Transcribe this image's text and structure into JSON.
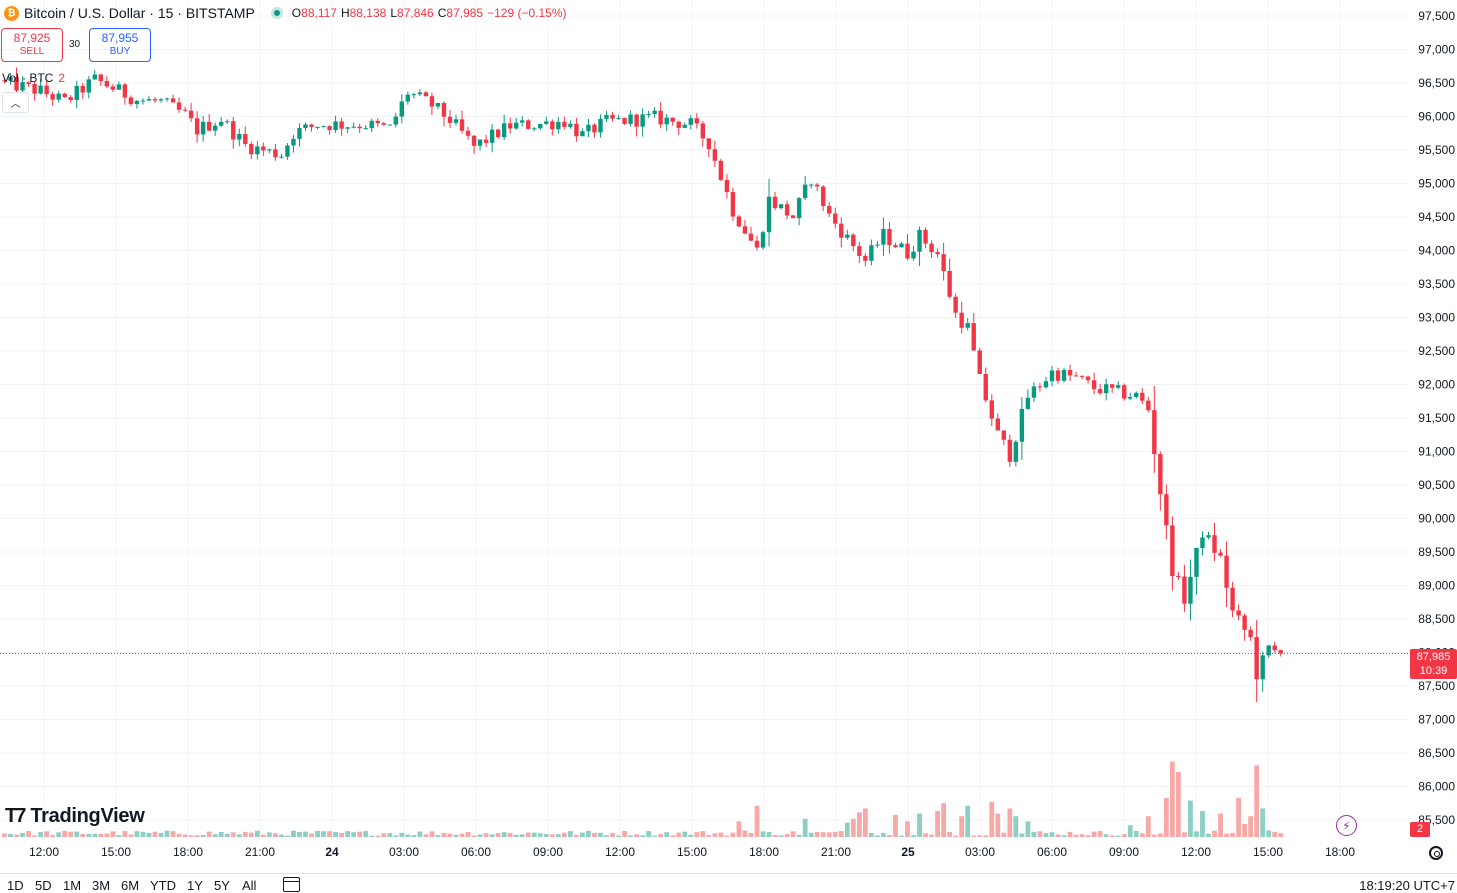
{
  "header": {
    "symbol_title": "Bitcoin / U.S. Dollar · 15 · BITSTAMP",
    "ohlc": [
      {
        "key": "O",
        "value": "88,117"
      },
      {
        "key": "H",
        "value": "88,138"
      },
      {
        "key": "L",
        "value": "87,846"
      },
      {
        "key": "C",
        "value": "87,985"
      }
    ],
    "change": "−129 (−0.15%)"
  },
  "trade": {
    "sell_price": "87,925",
    "sell_label": "SELL",
    "spread": "30",
    "buy_price": "87,955",
    "buy_label": "BUY"
  },
  "volume_legend": {
    "label": "Vol · BTC",
    "value": "2"
  },
  "logo_text": "TradingView",
  "last_price": {
    "price": "87,985",
    "countdown": "10:39"
  },
  "volume_badge": "2",
  "ranges": [
    "1D",
    "5D",
    "1M",
    "3M",
    "6M",
    "YTD",
    "1Y",
    "5Y",
    "All"
  ],
  "clock": "18:19:20 UTC+7",
  "colors": {
    "up": "#089981",
    "down": "#f23645",
    "up_volume": "#8dcfc2",
    "down_volume": "#f7a9a8"
  },
  "chart_data": {
    "type": "candlestick",
    "title": "Bitcoin / U.S. Dollar · 15 · BITSTAMP",
    "interval": "15",
    "y_axis": {
      "side": "right",
      "ylim": [
        85300,
        97600
      ],
      "ticks": [
        97500,
        97000,
        96500,
        96000,
        95500,
        95000,
        94500,
        94000,
        93500,
        93000,
        92500,
        92000,
        91500,
        91000,
        90500,
        90000,
        89500,
        89000,
        88500,
        88000,
        87500,
        87000,
        86500,
        86000,
        85500
      ],
      "tick_labels": [
        "97,500",
        "97,000",
        "96,500",
        "96,000",
        "95,500",
        "95,000",
        "94,500",
        "94,000",
        "93,500",
        "93,000",
        "92,500",
        "92,000",
        "91,500",
        "91,000",
        "90,500",
        "90,000",
        "89,500",
        "89,000",
        "88,500",
        "88,000",
        "87,500",
        "87,000",
        "86,500",
        "86,000",
        "85,500"
      ]
    },
    "x_axis": {
      "tick_labels": [
        "12:00",
        "15:00",
        "18:00",
        "21:00",
        "24",
        "03:00",
        "06:00",
        "09:00",
        "12:00",
        "15:00",
        "18:00",
        "21:00",
        "25",
        "03:00",
        "06:00",
        "09:00",
        "12:00",
        "15:00",
        "18:00"
      ],
      "first_bar_time": "10:30",
      "bar_minutes": 15
    },
    "grid": true,
    "last_price": 87985,
    "path": [
      [
        0,
        96500
      ],
      [
        6,
        96380
      ],
      [
        10,
        96220
      ],
      [
        15,
        96550
      ],
      [
        17,
        96470
      ],
      [
        22,
        96250
      ],
      [
        26,
        96220
      ],
      [
        30,
        96020
      ],
      [
        32,
        95800
      ],
      [
        36,
        95960
      ],
      [
        40,
        95570
      ],
      [
        44,
        95470
      ],
      [
        46,
        95440
      ],
      [
        48,
        95750
      ],
      [
        52,
        95880
      ],
      [
        60,
        95880
      ],
      [
        64,
        95820
      ],
      [
        67,
        96360
      ],
      [
        71,
        96170
      ],
      [
        74,
        95950
      ],
      [
        78,
        95550
      ],
      [
        84,
        95860
      ],
      [
        88,
        95880
      ],
      [
        93,
        95930
      ],
      [
        96,
        95720
      ],
      [
        100,
        95920
      ],
      [
        104,
        95950
      ],
      [
        108,
        95980
      ],
      [
        114,
        95880
      ],
      [
        117,
        95610
      ],
      [
        121,
        94600
      ],
      [
        125,
        94000
      ],
      [
        127,
        94760
      ],
      [
        131,
        94500
      ],
      [
        134,
        95080
      ],
      [
        137,
        94520
      ],
      [
        140,
        94180
      ],
      [
        143,
        93850
      ],
      [
        146,
        94230
      ],
      [
        150,
        93960
      ],
      [
        152,
        94220
      ],
      [
        155,
        93950
      ],
      [
        158,
        93050
      ],
      [
        160,
        92850
      ],
      [
        162,
        92060
      ],
      [
        165,
        91250
      ],
      [
        167,
        90950
      ],
      [
        170,
        91820
      ],
      [
        174,
        92180
      ],
      [
        178,
        92100
      ],
      [
        181,
        91950
      ],
      [
        185,
        91880
      ],
      [
        188,
        91830
      ],
      [
        190,
        91630
      ],
      [
        192,
        90400
      ],
      [
        194,
        89250
      ],
      [
        196,
        88800
      ],
      [
        199,
        89800
      ],
      [
        202,
        89400
      ],
      [
        204,
        88600
      ],
      [
        207,
        88200
      ],
      [
        208,
        87680
      ],
      [
        210,
        88050
      ],
      [
        212,
        87985
      ]
    ],
    "volume_spikes": [
      [
        122,
        12
      ],
      [
        123,
        5
      ],
      [
        125,
        24
      ],
      [
        133,
        14
      ],
      [
        140,
        11
      ],
      [
        141,
        14
      ],
      [
        142,
        19
      ],
      [
        143,
        22
      ],
      [
        148,
        17
      ],
      [
        150,
        12
      ],
      [
        152,
        18
      ],
      [
        155,
        20
      ],
      [
        156,
        26
      ],
      [
        159,
        16
      ],
      [
        160,
        24
      ],
      [
        164,
        27
      ],
      [
        165,
        18
      ],
      [
        167,
        22
      ],
      [
        168,
        16
      ],
      [
        170,
        12
      ],
      [
        187,
        9
      ],
      [
        190,
        16
      ],
      [
        193,
        30
      ],
      [
        194,
        58
      ],
      [
        195,
        50
      ],
      [
        197,
        28
      ],
      [
        199,
        20
      ],
      [
        202,
        18
      ],
      [
        205,
        30
      ],
      [
        206,
        10
      ],
      [
        207,
        16
      ],
      [
        208,
        55
      ],
      [
        209,
        22
      ],
      [
        210,
        5
      ],
      [
        211,
        4
      ],
      [
        212,
        3
      ]
    ]
  }
}
